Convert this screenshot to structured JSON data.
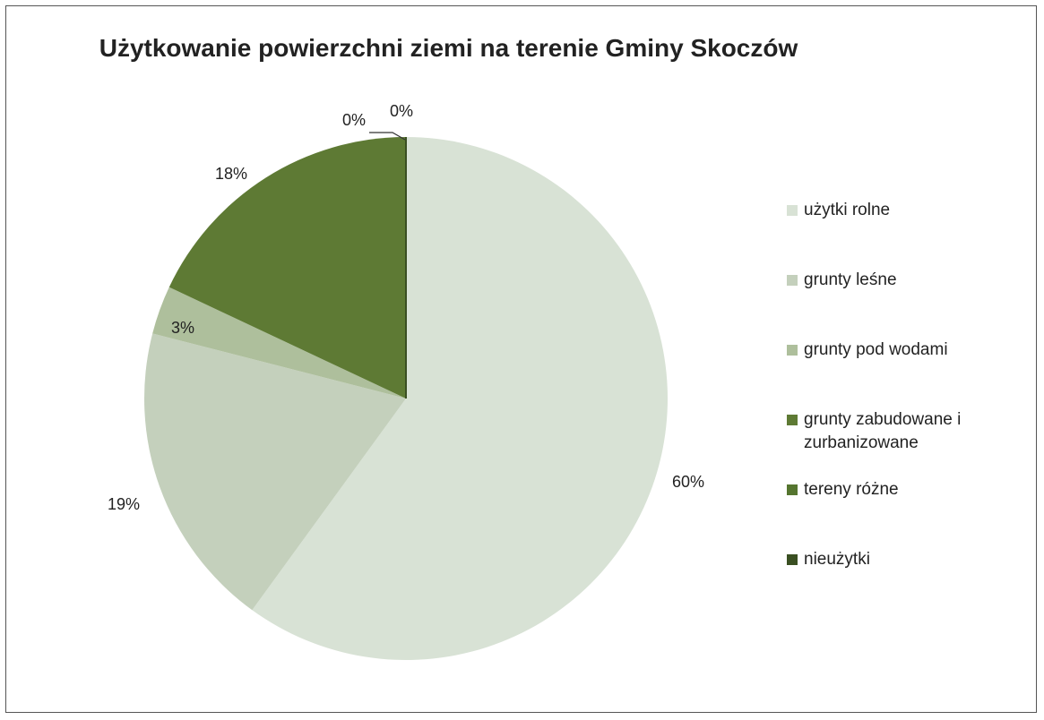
{
  "chart_data": {
    "type": "pie",
    "title": "Użytkowanie powierzchni ziemi na terenie Gminy Skoczów",
    "legend_position": "right",
    "slices": [
      {
        "name": "użytki rolne",
        "value": 60,
        "label": "60%",
        "color": "#d8e2d5"
      },
      {
        "name": "grunty leśne",
        "value": 19,
        "label": "19%",
        "color": "#c4d0bc"
      },
      {
        "name": "grunty pod wodami",
        "value": 3,
        "label": "3%",
        "color": "#aebf9c"
      },
      {
        "name": "grunty zabudowane i zurbanizowane",
        "value": 18,
        "label": "18%",
        "color": "#5e7a34"
      },
      {
        "name": "tereny różne",
        "value": 0,
        "label": "0%",
        "color": "#55752f"
      },
      {
        "name": "nieużytki",
        "value": 0,
        "label": "0%",
        "color": "#3a4f22"
      }
    ]
  }
}
